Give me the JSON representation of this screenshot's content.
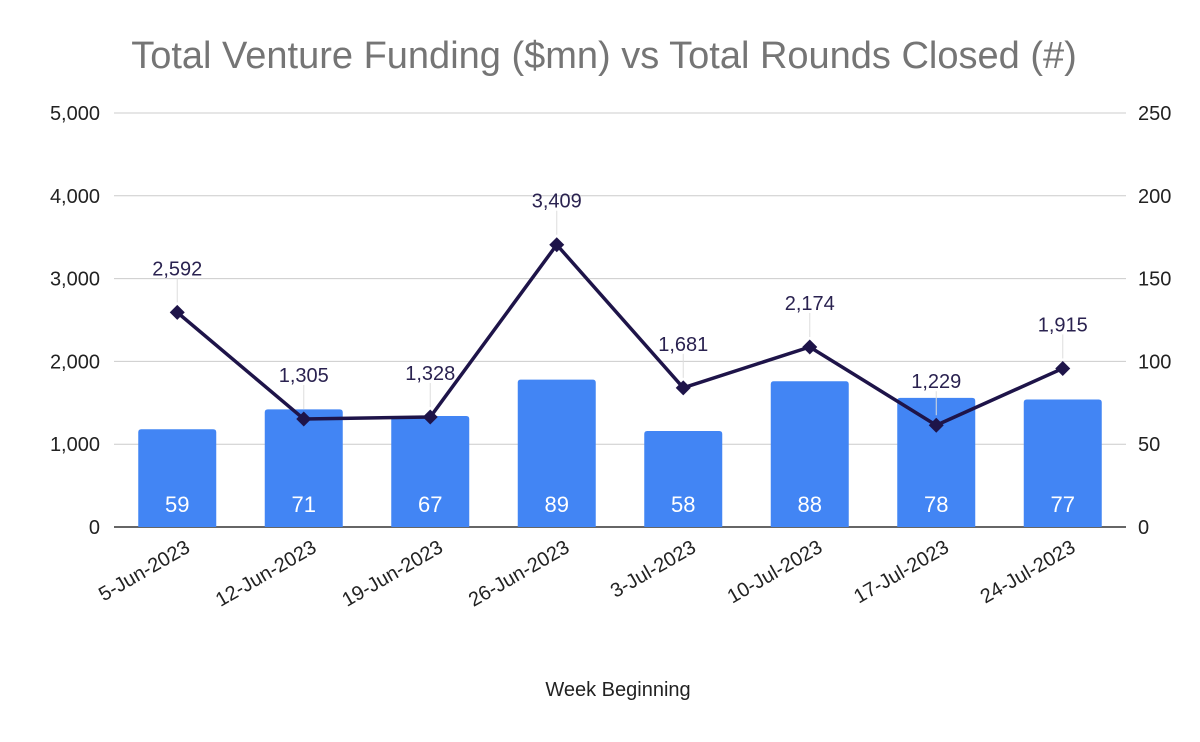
{
  "chart_data": {
    "type": "bar",
    "title": "Total Venture Funding ($mn) vs Total Rounds Closed (#)",
    "xlabel": "Week Beginning",
    "categories": [
      "5-Jun-2023",
      "12-Jun-2023",
      "19-Jun-2023",
      "26-Jun-2023",
      "3-Jul-2023",
      "10-Jul-2023",
      "17-Jul-2023",
      "24-Jul-2023"
    ],
    "y_left": {
      "min": 0,
      "max": 5000,
      "ticks": [
        "0",
        "1,000",
        "2,000",
        "3,000",
        "4,000",
        "5,000"
      ]
    },
    "y_right": {
      "min": 0,
      "max": 250,
      "ticks": [
        "0",
        "50",
        "100",
        "150",
        "200",
        "250"
      ]
    },
    "grid": true,
    "series": [
      {
        "type": "bar",
        "axis": "right",
        "color": "#4285f4",
        "values": [
          59,
          71,
          67,
          89,
          58,
          88,
          78,
          77
        ],
        "labels": [
          "59",
          "71",
          "67",
          "89",
          "58",
          "88",
          "78",
          "77"
        ]
      },
      {
        "type": "line",
        "axis": "left",
        "color": "#1e1449",
        "marker": "diamond",
        "values": [
          2592,
          1305,
          1328,
          3409,
          1681,
          2174,
          1229,
          1915
        ],
        "labels": [
          "2,592",
          "1,305",
          "1,328",
          "3,409",
          "1,681",
          "2,174",
          "1,229",
          "1,915"
        ]
      }
    ]
  }
}
